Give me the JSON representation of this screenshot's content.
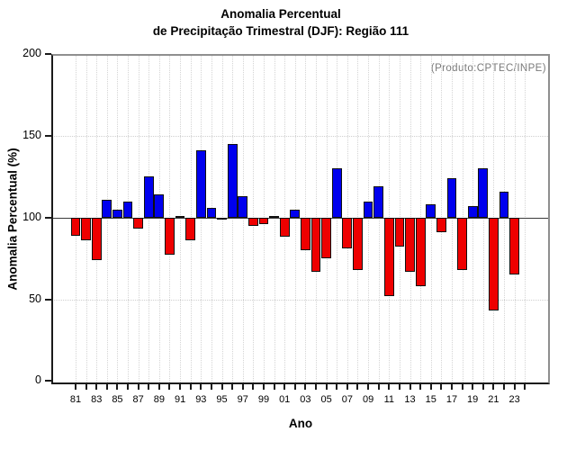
{
  "title": {
    "line1": "Anomalia Percentual",
    "line2": "de Precipitação Trimestral (DJF): Região 111"
  },
  "annotation": "(Produto:CPTEC/INPE)",
  "chart_data": {
    "type": "bar",
    "title": "Anomalia Percentual de Precipitação Trimestral (DJF): Região 111",
    "xlabel": "Ano",
    "ylabel": "Anomalia Percentual (%)",
    "ylim": [
      0,
      200
    ],
    "yticks": [
      0,
      50,
      100,
      150,
      200
    ],
    "baseline": 100,
    "grid": "dotted",
    "legend_position": "none",
    "colors": {
      "above_baseline": "#0000ee",
      "below_baseline": "#ee0000",
      "bar_border": "#101010",
      "annotation_text": "#7a7a7a"
    },
    "categories": [
      "81",
      "82",
      "83",
      "84",
      "85",
      "86",
      "87",
      "88",
      "89",
      "90",
      "91",
      "92",
      "93",
      "94",
      "95",
      "96",
      "97",
      "98",
      "99",
      "00",
      "01",
      "02",
      "03",
      "04",
      "05",
      "06",
      "07",
      "08",
      "09",
      "10",
      "11",
      "12",
      "13",
      "14",
      "15",
      "16",
      "17",
      "18",
      "19",
      "20",
      "21",
      "22",
      "23"
    ],
    "values": [
      89,
      86,
      74,
      111,
      105,
      110,
      93,
      125,
      114,
      77,
      101,
      86,
      141,
      106,
      100,
      145,
      113,
      95,
      96,
      101,
      88,
      105,
      80,
      67,
      75,
      130,
      81,
      68,
      110,
      119,
      52,
      82,
      67,
      58,
      108,
      91,
      124,
      68,
      107,
      130,
      43,
      116,
      65
    ],
    "xtick_labels": [
      "81",
      "83",
      "85",
      "87",
      "89",
      "91",
      "93",
      "95",
      "97",
      "99",
      "01",
      "03",
      "05",
      "07",
      "09",
      "11",
      "13",
      "15",
      "17",
      "19",
      "21",
      "23"
    ],
    "extra_unlabeled_tick": "24"
  }
}
